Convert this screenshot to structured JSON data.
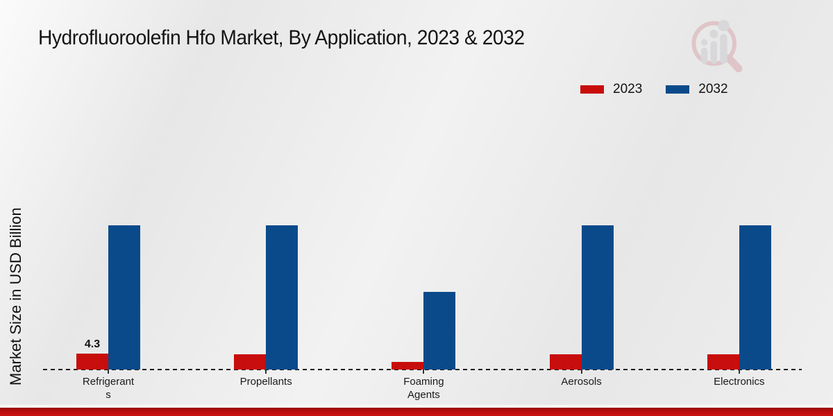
{
  "page": {
    "title": "Hydrofluoroolefin Hfo Market, By Application, 2023 & 2032",
    "y_axis_title": "Market Size in USD Billion"
  },
  "legend": {
    "items": [
      {
        "label": "2023",
        "color": "#c80d0d"
      },
      {
        "label": "2032",
        "color": "#0a4a8a"
      }
    ]
  },
  "watermark": {
    "name": "market-research-future-logo",
    "ring_color": "#d9aaae",
    "bars_color": "#cdcdd1"
  },
  "footer": {
    "accent_color": "#c01010"
  },
  "chart_data": {
    "type": "bar",
    "title": "Hydrofluoroolefin Hfo Market, By Application, 2023 & 2032",
    "xlabel": "",
    "ylabel": "Market Size in USD Billion",
    "categories": [
      "Refrigerants",
      "Propellants",
      "Foaming Agents",
      "Aerosols",
      "Electronics"
    ],
    "category_label_lines": [
      [
        "Refrigerant",
        "s"
      ],
      [
        "Propellants"
      ],
      [
        "Foaming",
        "Agents"
      ],
      [
        "Aerosols"
      ],
      [
        "Electronics"
      ]
    ],
    "series": [
      {
        "name": "2023",
        "color": "#c80d0d",
        "values": [
          4.3,
          4.0,
          2.0,
          4.1,
          4.1
        ],
        "data_labels": [
          "4.3",
          "",
          "",
          "",
          ""
        ]
      },
      {
        "name": "2032",
        "color": "#0a4a8a",
        "values": [
          38.3,
          38.3,
          20.6,
          38.3,
          38.3
        ],
        "data_labels": [
          "",
          "",
          "",
          "",
          ""
        ]
      }
    ],
    "ylim": [
      0,
      45
    ],
    "grid": false,
    "baseline_style": "dashed",
    "legend_position": "top-right",
    "y_axis_ticks_visible": false
  }
}
